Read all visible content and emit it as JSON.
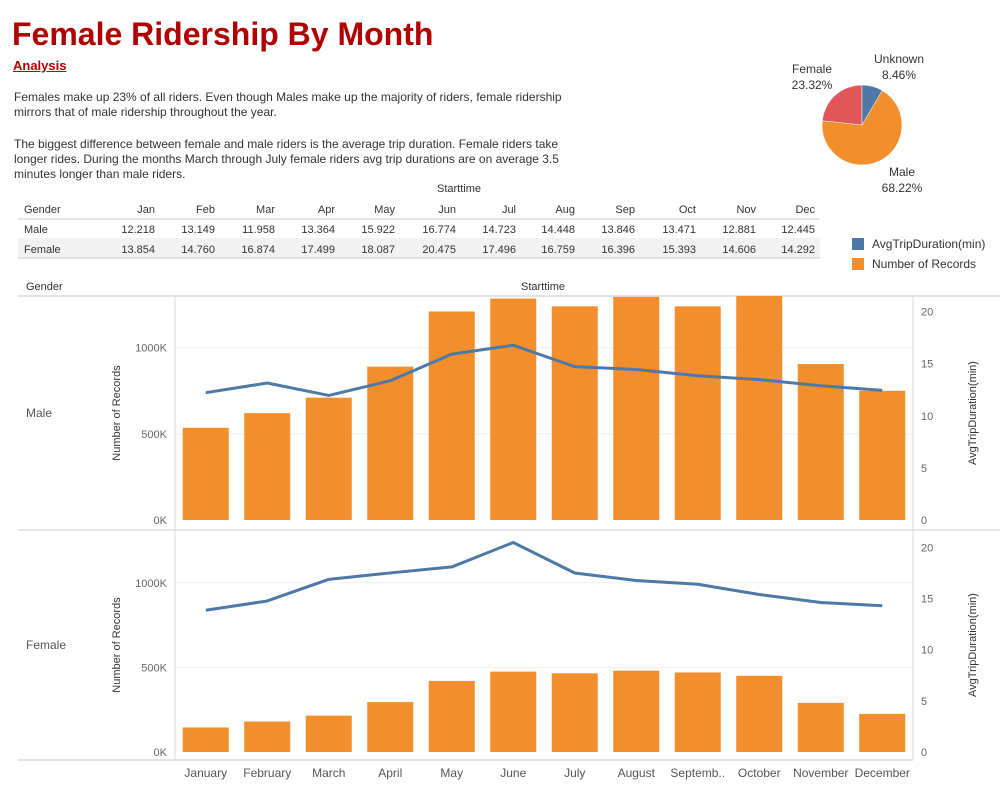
{
  "header": {
    "title": "Female Ridership By Month",
    "analysis_link": "Analysis",
    "paragraph1": "Females make up 23% of all riders.  Even though Males make up the majority of riders, female ridership mirrors that of male ridership throughout the year.",
    "paragraph2": "The biggest difference between female and male riders is the average trip duration.  Female riders take longer rides. During the months March through July female riders avg trip durations are on average 3.5 minutes longer than male riders."
  },
  "colors": {
    "orange": "#f28e2b",
    "blue": "#4e79a7",
    "red": "#e15759",
    "title_red": "#b00000"
  },
  "legend": {
    "items": [
      {
        "label": "AvgTripDuration(min)",
        "color": "#4e79a7"
      },
      {
        "label": "Number of Records",
        "color": "#f28e2b"
      }
    ]
  },
  "chart_data": [
    {
      "type": "pie",
      "slices": [
        {
          "label": "Female",
          "percent": "23.32%",
          "value": 23.32,
          "color": "#e15759"
        },
        {
          "label": "Unknown",
          "percent": "8.46%",
          "value": 8.46,
          "color": "#4e79a7"
        },
        {
          "label": "Male",
          "percent": "68.22%",
          "value": 68.22,
          "color": "#f28e2b"
        }
      ]
    },
    {
      "type": "table",
      "column_group_header": "Starttime",
      "row_header": "Gender",
      "columns": [
        "Jan",
        "Feb",
        "Mar",
        "Apr",
        "May",
        "Jun",
        "Jul",
        "Aug",
        "Sep",
        "Oct",
        "Nov",
        "Dec"
      ],
      "rows": [
        {
          "label": "Male",
          "values": [
            "12.218",
            "13.149",
            "11.958",
            "13.364",
            "15.922",
            "16.774",
            "14.723",
            "14.448",
            "13.846",
            "13.471",
            "12.881",
            "12.445"
          ]
        },
        {
          "label": "Female",
          "values": [
            "13.854",
            "14.760",
            "16.874",
            "17.499",
            "18.087",
            "20.475",
            "17.496",
            "16.759",
            "16.396",
            "15.393",
            "14.606",
            "14.292"
          ]
        }
      ]
    },
    {
      "type": "bar",
      "column_header": "Starttime",
      "row_header": "Gender",
      "categories": [
        "January",
        "February",
        "March",
        "April",
        "May",
        "June",
        "July",
        "August",
        "Septemb..",
        "October",
        "November",
        "December"
      ],
      "y_label": "Number of Records",
      "y2_label": "AvgTripDuration(min)",
      "y_ticks": [
        0,
        500000,
        1000000
      ],
      "y_tick_labels": [
        "0K",
        "500K",
        "1000K"
      ],
      "y2_ticks": [
        0,
        5,
        10,
        15,
        20
      ],
      "panels": [
        {
          "label": "Male",
          "ylim": [
            0,
            1300000
          ],
          "y2lim": [
            0,
            21.5
          ],
          "records": [
            535000,
            620000,
            710000,
            890000,
            1210000,
            1285000,
            1240000,
            1295000,
            1240000,
            1300000,
            905000,
            750000
          ],
          "avg_duration": [
            12.218,
            13.149,
            11.958,
            13.364,
            15.922,
            16.774,
            14.723,
            14.448,
            13.846,
            13.471,
            12.881,
            12.445
          ]
        },
        {
          "label": "Female",
          "ylim": [
            0,
            1300000
          ],
          "y2lim": [
            0,
            21.5
          ],
          "records": [
            145000,
            180000,
            215000,
            295000,
            420000,
            475000,
            465000,
            480000,
            470000,
            450000,
            290000,
            225000
          ],
          "avg_duration": [
            13.854,
            14.76,
            16.874,
            17.499,
            18.087,
            20.475,
            17.496,
            16.759,
            16.396,
            15.393,
            14.606,
            14.292
          ]
        }
      ]
    }
  ]
}
